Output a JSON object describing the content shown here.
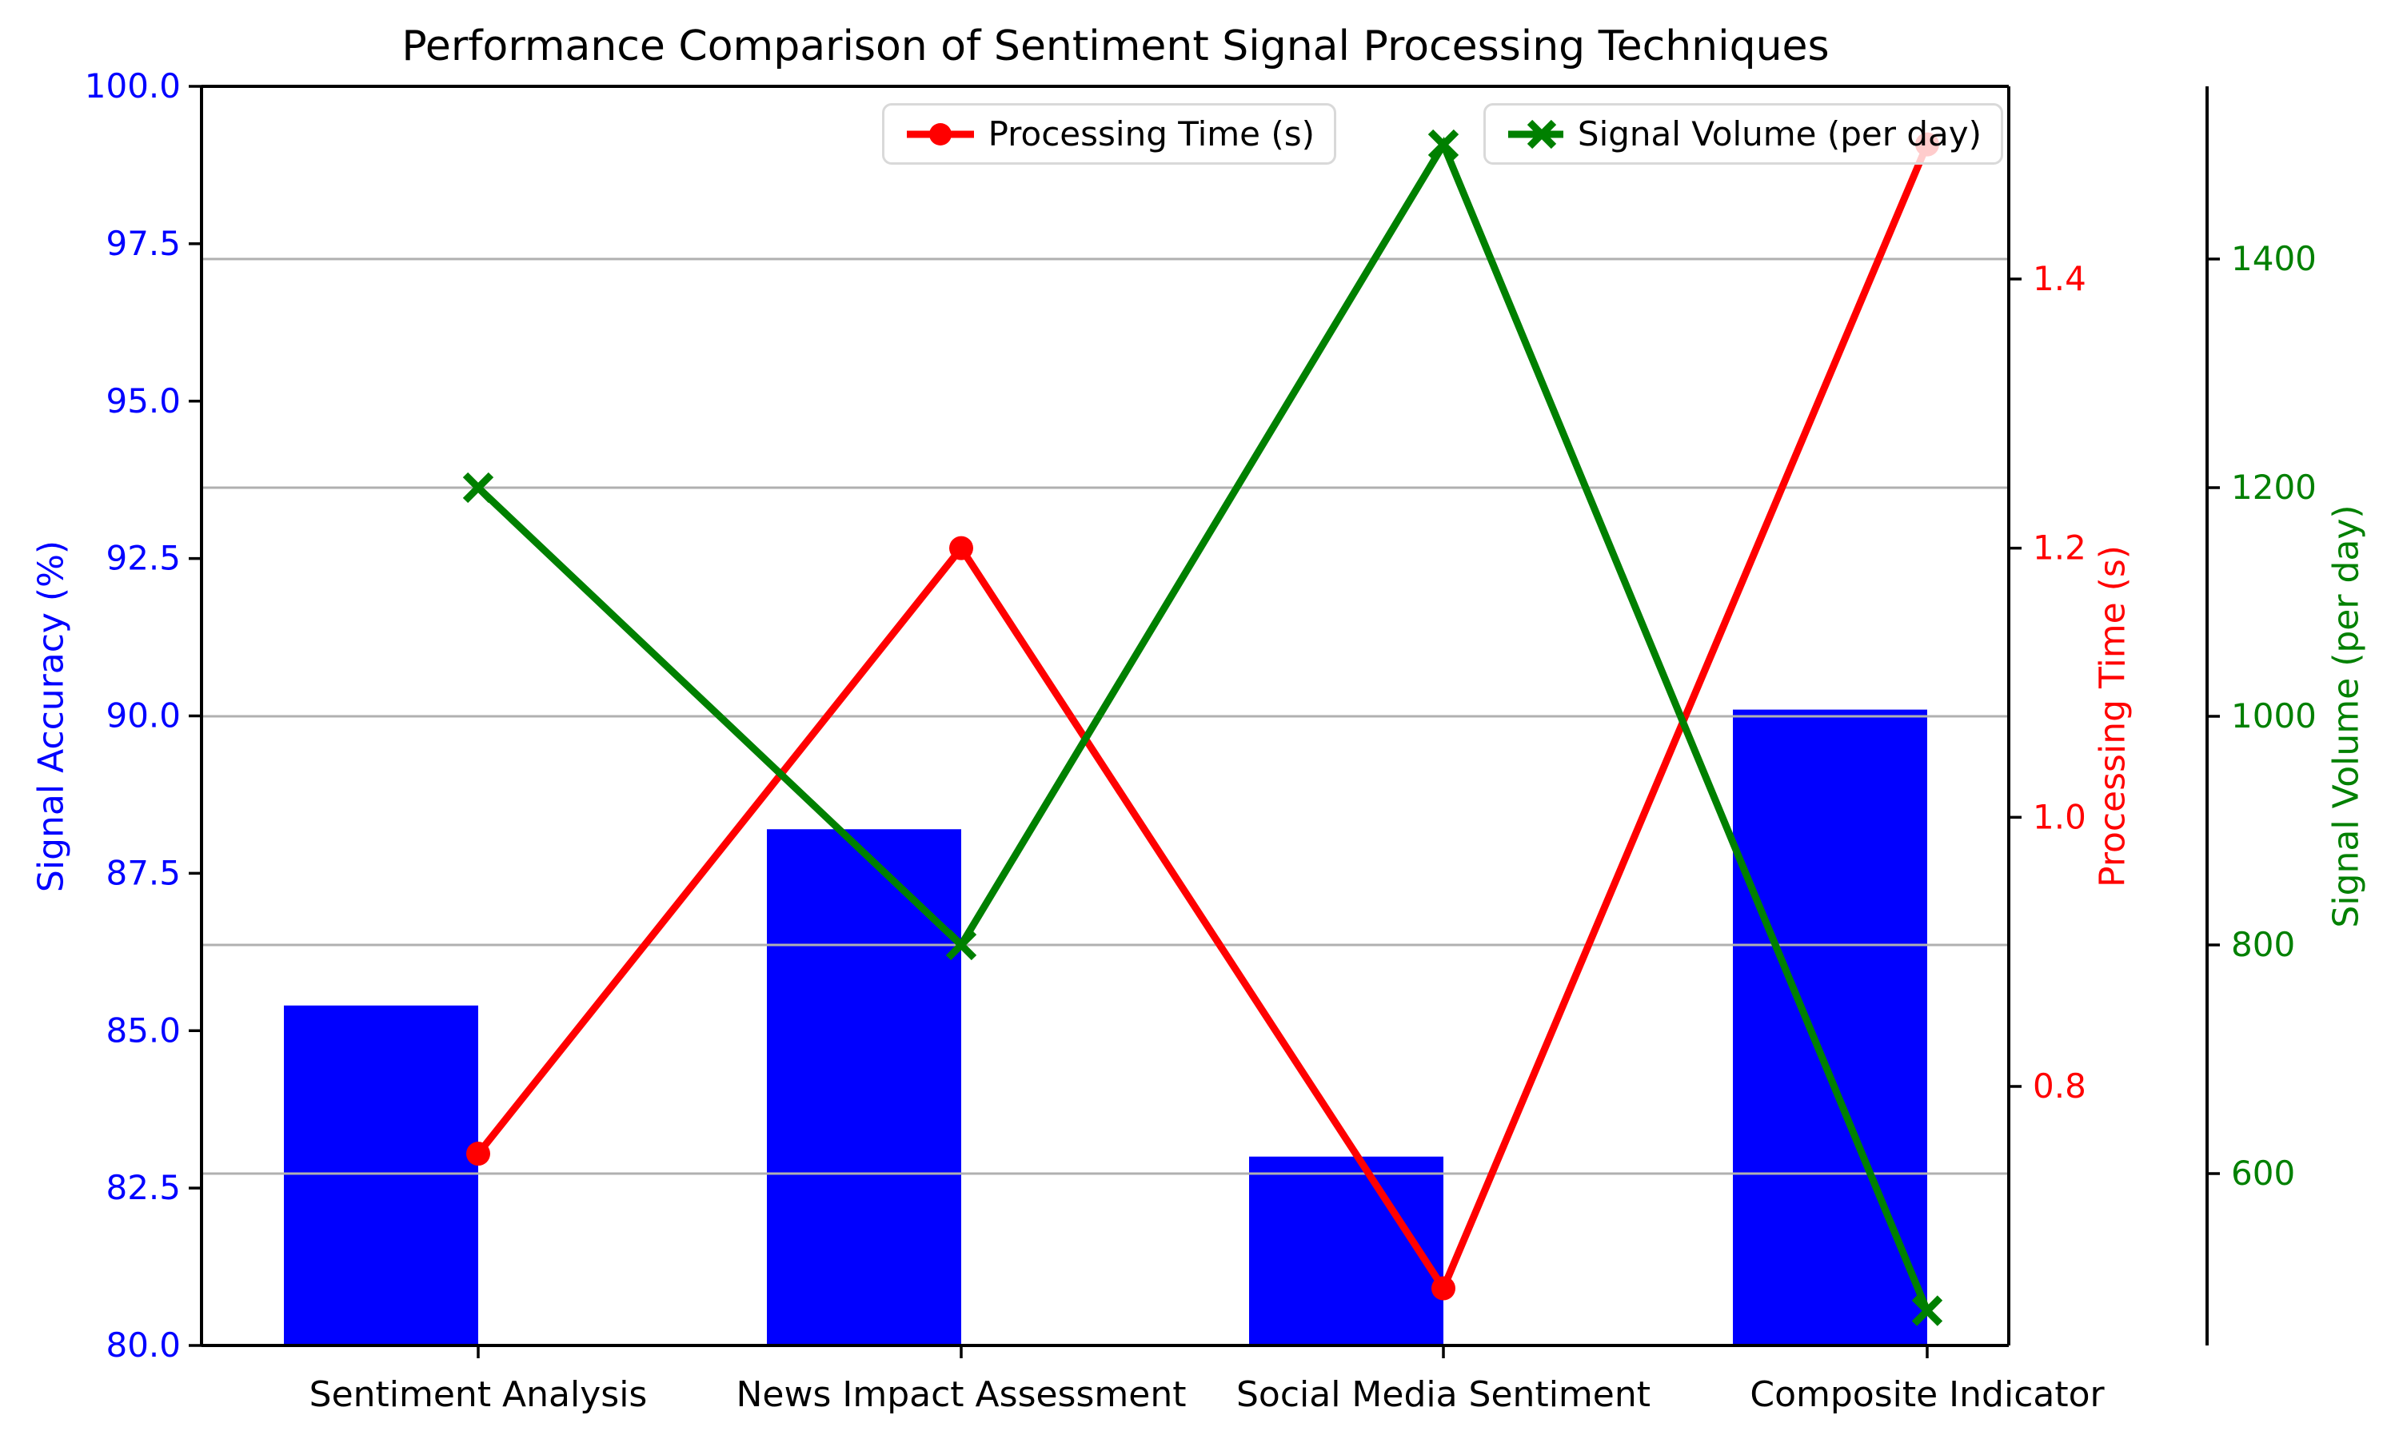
{
  "title": "Performance Comparison of Sentiment Signal Processing Techniques",
  "chart_data": {
    "type": "bar",
    "subtype": "bar-plus-two-lines-triple-axis",
    "categories": [
      "Sentiment Analysis",
      "News Impact Assessment",
      "Social Media Sentiment",
      "Composite Indicator"
    ],
    "series": [
      {
        "name": "Signal Accuracy (%)",
        "type": "bar",
        "axis": "left",
        "color": "#0000ff",
        "values": [
          85.4,
          88.2,
          83.0,
          90.1
        ]
      },
      {
        "name": "Processing Time (s)",
        "type": "line",
        "marker": "circle",
        "axis": "right_inner",
        "color": "#ff0000",
        "values": [
          0.75,
          1.2,
          0.65,
          1.5
        ]
      },
      {
        "name": "Signal Volume (per day)",
        "type": "line",
        "marker": "x",
        "axis": "right_outer",
        "color": "#008000",
        "values": [
          1200,
          800,
          1500,
          480
        ]
      }
    ],
    "axes": {
      "left": {
        "label": "Signal Accuracy (%)",
        "color": "#0000ff",
        "range": [
          80,
          100
        ],
        "ticks": [
          80,
          82.5,
          85,
          87.5,
          90,
          92.5,
          95,
          97.5,
          100
        ],
        "tick_labels": [
          "80.0",
          "82.5",
          "85.0",
          "87.5",
          "90.0",
          "92.5",
          "95.0",
          "97.5",
          "100.0"
        ]
      },
      "right_inner": {
        "label": "Processing Time (s)",
        "color": "#ff0000",
        "range": [
          0.61,
          1.54
        ],
        "ticks": [
          0.8,
          1.0,
          1.2,
          1.4
        ],
        "tick_labels": [
          "0.8",
          "1.0",
          "1.2",
          "1.4"
        ]
      },
      "right_outer": {
        "label": "Signal Volume (per day)",
        "color": "#008000",
        "range": [
          450,
          1551
        ],
        "ticks": [
          600,
          800,
          1000,
          1200,
          1400
        ],
        "tick_labels": [
          "600",
          "800",
          "1000",
          "1200",
          "1400"
        ]
      }
    },
    "legend": [
      {
        "label": "Processing Time (s)",
        "color": "#ff0000",
        "marker": "circle"
      },
      {
        "label": "Signal Volume (per day)",
        "color": "#008000",
        "marker": "x"
      }
    ],
    "grid": {
      "show": true,
      "orientation": "horizontal",
      "color": "#b0b0b0",
      "aligned_to": "right_outer"
    },
    "colors": {
      "bar": "#0000ff",
      "time_line": "#ff0000",
      "volume_line": "#008000",
      "spine": "#000000"
    }
  }
}
